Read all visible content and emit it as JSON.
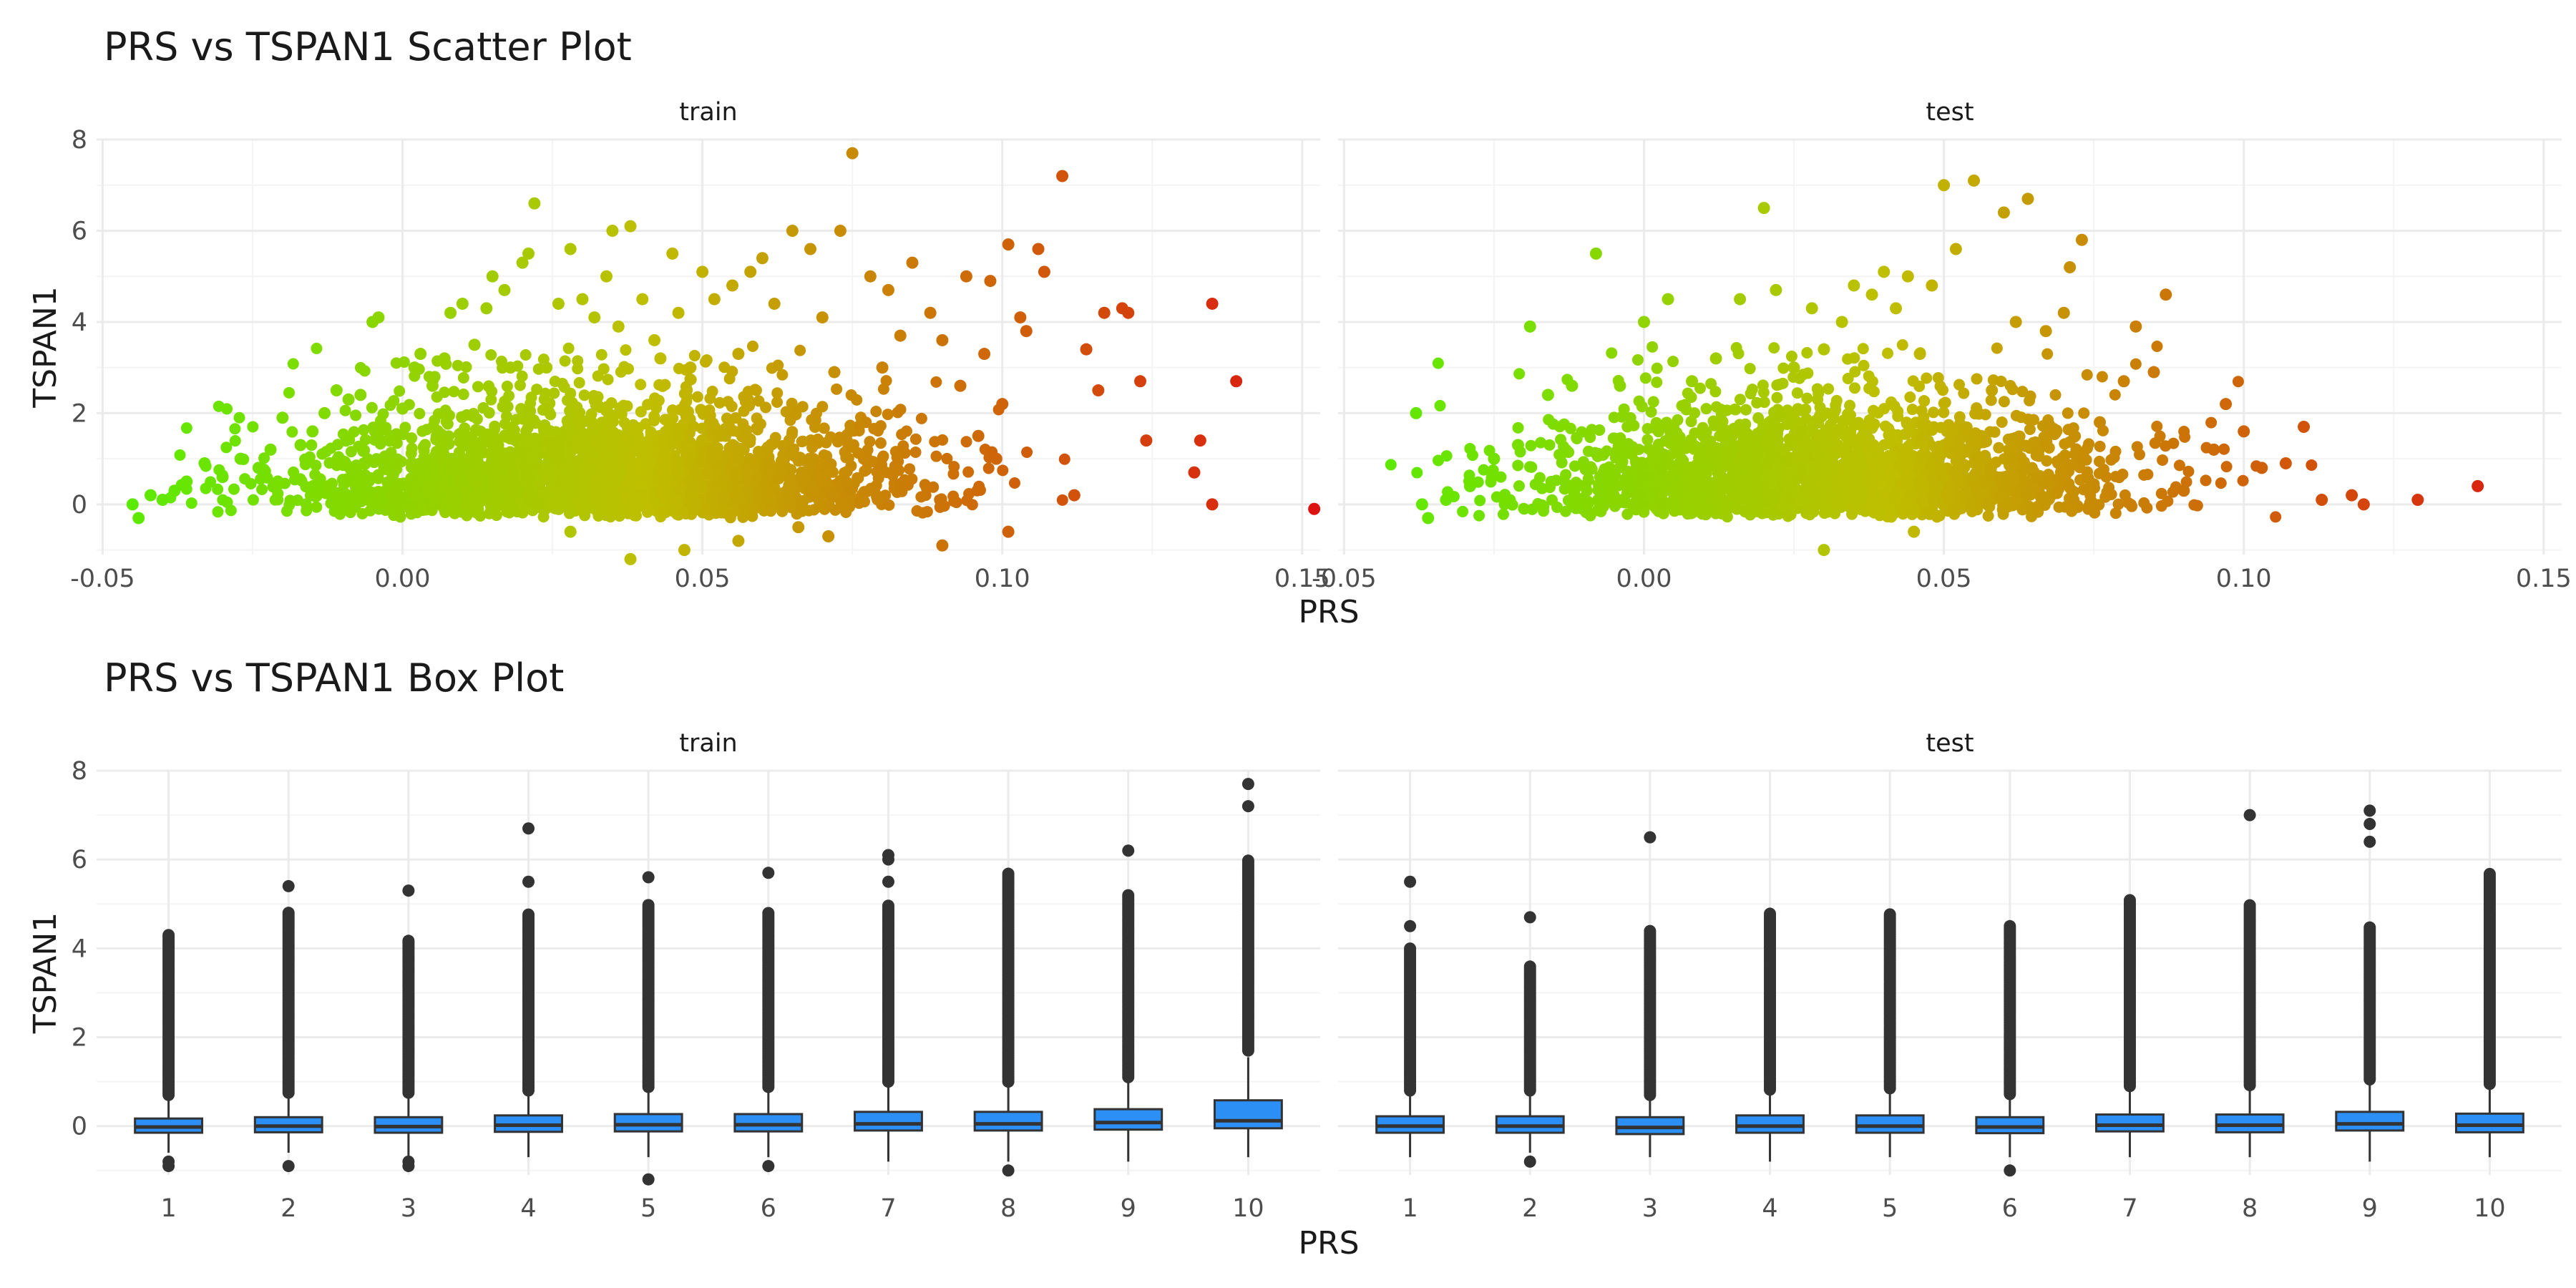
{
  "colors": {
    "low": "#55ee00",
    "mid": "#bfbf00",
    "high": "#dd1111",
    "box_fill": "#2b8ff5",
    "box_line": "#333333",
    "outlier": "#333333",
    "grid_major": "#ebebeb",
    "grid_minor": "#f4f4f4"
  },
  "scatter_section": {
    "title": "PRS vs TSPAN1 Scatter Plot",
    "xlabel": "PRS",
    "ylabel": "TSPAN1",
    "panels": [
      "train",
      "test"
    ],
    "x_ticks": [
      "-0.05",
      "0.00",
      "0.05",
      "0.10",
      "0.15"
    ],
    "y_ticks": [
      "0",
      "2",
      "4",
      "6",
      "8"
    ]
  },
  "box_section": {
    "title": "PRS vs TSPAN1 Box Plot",
    "xlabel": "PRS",
    "ylabel": "TSPAN1",
    "panels": [
      "train",
      "test"
    ],
    "x_ticks": [
      "1",
      "2",
      "3",
      "4",
      "5",
      "6",
      "7",
      "8",
      "9",
      "10"
    ],
    "y_ticks": [
      "0",
      "2",
      "4",
      "6",
      "8"
    ]
  },
  "chart_data": [
    {
      "type": "scatter",
      "title": "PRS vs TSPAN1 Scatter Plot",
      "xlabel": "PRS",
      "ylabel": "TSPAN1",
      "facets": [
        "train",
        "test"
      ],
      "xlim": [
        -0.051,
        0.153
      ],
      "ylim": [
        -1.1,
        8.0
      ],
      "x_ticks": [
        -0.05,
        0.0,
        0.05,
        0.1,
        0.15
      ],
      "y_ticks": [
        0,
        2,
        4,
        6,
        8
      ],
      "color_mapping": "PRS (green at low PRS, yellow-olive mid, red at high PRS)",
      "grid": true,
      "series": [
        {
          "name": "train",
          "x": [
            0.152,
            0.139,
            0.135,
            0.135,
            0.133,
            0.132,
            0.124,
            0.123,
            0.121,
            0.12,
            0.117,
            0.116,
            0.114,
            0.112,
            0.11,
            0.107,
            0.106,
            0.104,
            0.103,
            0.101,
            0.1,
            0.099,
            0.098,
            0.097,
            0.096,
            0.094,
            0.093,
            0.09,
            0.088,
            0.085,
            0.083,
            0.081,
            0.08,
            0.078,
            0.075,
            0.073,
            0.072,
            0.07,
            0.068,
            0.065,
            0.062,
            0.06,
            0.058,
            0.056,
            0.055,
            0.052,
            0.05,
            0.048,
            0.046,
            0.045,
            0.043,
            0.042,
            0.04,
            0.038,
            0.036,
            0.035,
            0.034,
            0.032,
            0.03,
            0.028,
            0.026,
            0.024,
            0.022,
            0.021,
            0.02,
            0.018,
            0.017,
            0.015,
            0.014,
            0.012,
            0.01,
            0.008,
            0.007,
            0.005,
            0.003,
            0.002,
            0.0,
            -0.002,
            -0.004,
            -0.005,
            -0.007,
            -0.009,
            -0.011,
            -0.013,
            -0.015,
            -0.017,
            -0.02,
            -0.022,
            -0.024,
            -0.027,
            -0.03,
            -0.033,
            -0.036,
            -0.038,
            -0.04,
            -0.042,
            -0.045,
            -0.044,
            0.047,
            0.056,
            0.028,
            0.038,
            0.066,
            0.071,
            0.09,
            0.101
          ],
          "y": [
            -0.1,
            2.7,
            4.4,
            0.0,
            1.4,
            0.7,
            1.4,
            2.7,
            4.2,
            4.3,
            4.2,
            2.5,
            3.4,
            0.2,
            7.2,
            5.1,
            5.6,
            3.8,
            4.1,
            5.7,
            2.2,
            1.0,
            4.9,
            3.3,
            1.5,
            5.0,
            2.6,
            3.6,
            4.2,
            5.3,
            3.7,
            4.7,
            3.0,
            5.0,
            7.7,
            6.0,
            2.9,
            4.1,
            5.6,
            6.0,
            4.4,
            5.4,
            5.1,
            3.3,
            4.8,
            4.5,
            5.1,
            3.0,
            4.2,
            5.5,
            3.2,
            3.6,
            4.5,
            6.1,
            3.9,
            6.0,
            5.0,
            4.1,
            4.5,
            5.6,
            4.4,
            3.0,
            6.6,
            5.5,
            5.3,
            3.0,
            4.7,
            5.0,
            4.3,
            3.5,
            4.4,
            4.2,
            3.2,
            2.6,
            3.3,
            3.0,
            2.1,
            1.5,
            4.1,
            4.0,
            2.4,
            2.3,
            2.5,
            2.0,
            1.6,
            1.3,
            1.9,
            1.2,
            0.8,
            1.0,
            0.6,
            0.9,
            0.5,
            0.3,
            0.1,
            0.2,
            0.0,
            -0.3,
            -1.0,
            -0.8,
            -0.6,
            -1.2,
            -0.5,
            -0.7,
            -0.9,
            -0.6
          ]
        },
        {
          "name": "test",
          "x": [
            0.139,
            0.129,
            0.12,
            0.118,
            0.113,
            0.11,
            0.107,
            0.103,
            0.1,
            0.097,
            0.095,
            0.09,
            0.087,
            0.085,
            0.082,
            0.08,
            0.076,
            0.073,
            0.071,
            0.07,
            0.067,
            0.064,
            0.062,
            0.06,
            0.058,
            0.055,
            0.052,
            0.05,
            0.048,
            0.046,
            0.044,
            0.042,
            0.04,
            0.038,
            0.035,
            0.033,
            0.03,
            0.028,
            0.025,
            0.022,
            0.02,
            0.016,
            0.012,
            0.008,
            0.004,
            0.0,
            -0.004,
            -0.008,
            -0.012,
            -0.016,
            -0.019,
            -0.021,
            -0.025,
            -0.029,
            -0.033,
            -0.037,
            -0.038,
            -0.036,
            0.03,
            0.045
          ],
          "y": [
            0.4,
            0.1,
            0.0,
            0.2,
            0.1,
            1.7,
            0.9,
            0.8,
            1.6,
            2.2,
            1.2,
            0.3,
            4.6,
            2.9,
            3.9,
            2.7,
            1.8,
            5.8,
            5.2,
            4.2,
            3.8,
            6.7,
            4.0,
            6.4,
            2.5,
            7.1,
            5.6,
            7.0,
            4.8,
            3.3,
            5.0,
            4.3,
            5.1,
            4.6,
            4.8,
            4.0,
            3.4,
            4.3,
            3.0,
            4.7,
            6.5,
            4.5,
            3.2,
            2.7,
            4.5,
            4.0,
            2.6,
            5.5,
            2.6,
            2.4,
            3.9,
            1.3,
            1.0,
            0.4,
            0.1,
            0.0,
            2.0,
            -0.3,
            -1.0,
            -0.6
          ]
        }
      ]
    },
    {
      "type": "box",
      "title": "PRS vs TSPAN1 Box Plot",
      "xlabel": "PRS",
      "ylabel": "TSPAN1",
      "facets": [
        "train",
        "test"
      ],
      "categories": [
        "1",
        "2",
        "3",
        "4",
        "5",
        "6",
        "7",
        "8",
        "9",
        "10"
      ],
      "ylim": [
        -1.1,
        8.0
      ],
      "y_ticks": [
        0,
        2,
        4,
        6,
        8
      ],
      "grid": true,
      "series": [
        {
          "name": "train",
          "boxes": [
            {
              "q1": -0.15,
              "median": -0.02,
              "q3": 0.17,
              "whisker_low": -0.6,
              "whisker_high": 0.62,
              "outlier_hi_start": 0.7,
              "outlier_max": 4.3,
              "outliers_low": [
                -0.8,
                -0.9
              ]
            },
            {
              "q1": -0.14,
              "median": 0.0,
              "q3": 0.2,
              "whisker_low": -0.6,
              "whisker_high": 0.65,
              "outlier_hi_start": 0.75,
              "outlier_max": 4.8,
              "outliers_low": [
                -0.9
              ],
              "extra_outliers": [
                5.4
              ]
            },
            {
              "q1": -0.15,
              "median": -0.01,
              "q3": 0.2,
              "whisker_low": -0.7,
              "whisker_high": 0.65,
              "outlier_hi_start": 0.75,
              "outlier_max": 4.2,
              "outliers_low": [
                -0.8,
                -0.9
              ],
              "extra_outliers": [
                5.3
              ]
            },
            {
              "q1": -0.13,
              "median": 0.02,
              "q3": 0.24,
              "whisker_low": -0.7,
              "whisker_high": 0.72,
              "outlier_hi_start": 0.8,
              "outlier_max": 4.8,
              "outliers_low": [],
              "extra_outliers": [
                5.5,
                6.7
              ]
            },
            {
              "q1": -0.12,
              "median": 0.03,
              "q3": 0.27,
              "whisker_low": -0.7,
              "whisker_high": 0.8,
              "outlier_hi_start": 0.88,
              "outlier_max": 5.0,
              "outliers_low": [
                -1.2
              ],
              "extra_outliers": [
                5.6
              ]
            },
            {
              "q1": -0.12,
              "median": 0.03,
              "q3": 0.27,
              "whisker_low": -0.7,
              "whisker_high": 0.8,
              "outlier_hi_start": 0.88,
              "outlier_max": 4.8,
              "outliers_low": [
                -0.9
              ],
              "extra_outliers": [
                5.7
              ]
            },
            {
              "q1": -0.1,
              "median": 0.05,
              "q3": 0.32,
              "whisker_low": -0.8,
              "whisker_high": 0.9,
              "outlier_hi_start": 1.0,
              "outlier_max": 5.0,
              "outliers_low": [],
              "extra_outliers": [
                5.5,
                6.0,
                6.1
              ]
            },
            {
              "q1": -0.1,
              "median": 0.05,
              "q3": 0.32,
              "whisker_low": -0.8,
              "whisker_high": 0.9,
              "outlier_hi_start": 1.0,
              "outlier_max": 5.7,
              "outliers_low": [
                -1.0
              ]
            },
            {
              "q1": -0.08,
              "median": 0.08,
              "q3": 0.38,
              "whisker_low": -0.8,
              "whisker_high": 1.0,
              "outlier_hi_start": 1.1,
              "outlier_max": 5.2,
              "outliers_low": [],
              "extra_outliers": [
                6.2
              ]
            },
            {
              "q1": -0.05,
              "median": 0.12,
              "q3": 0.58,
              "whisker_low": -0.7,
              "whisker_high": 1.55,
              "outlier_hi_start": 1.7,
              "outlier_max": 6.0,
              "outliers_low": [],
              "extra_outliers": [
                7.2,
                7.7
              ]
            }
          ]
        },
        {
          "name": "test",
          "boxes": [
            {
              "q1": -0.15,
              "median": 0.0,
              "q3": 0.22,
              "whisker_low": -0.7,
              "whisker_high": 0.72,
              "outlier_hi_start": 0.8,
              "outlier_max": 4.0,
              "outliers_low": [],
              "extra_outliers": [
                4.5,
                5.5
              ]
            },
            {
              "q1": -0.15,
              "median": 0.0,
              "q3": 0.22,
              "whisker_low": -0.6,
              "whisker_high": 0.72,
              "outlier_hi_start": 0.8,
              "outlier_max": 3.6,
              "outliers_low": [
                -0.8
              ],
              "extra_outliers": [
                4.7
              ]
            },
            {
              "q1": -0.18,
              "median": -0.03,
              "q3": 0.2,
              "whisker_low": -0.7,
              "whisker_high": 0.62,
              "outlier_hi_start": 0.7,
              "outlier_max": 4.4,
              "outliers_low": [],
              "extra_outliers": [
                6.5
              ]
            },
            {
              "q1": -0.15,
              "median": 0.0,
              "q3": 0.24,
              "whisker_low": -0.8,
              "whisker_high": 0.72,
              "outlier_hi_start": 0.82,
              "outlier_max": 4.8,
              "outliers_low": []
            },
            {
              "q1": -0.15,
              "median": 0.0,
              "q3": 0.24,
              "whisker_low": -0.7,
              "whisker_high": 0.75,
              "outlier_hi_start": 0.85,
              "outlier_max": 4.8,
              "outliers_low": []
            },
            {
              "q1": -0.16,
              "median": -0.02,
              "q3": 0.2,
              "whisker_low": -0.7,
              "whisker_high": 0.62,
              "outlier_hi_start": 0.72,
              "outlier_max": 4.5,
              "outliers_low": [
                -1.0
              ]
            },
            {
              "q1": -0.12,
              "median": 0.02,
              "q3": 0.26,
              "whisker_low": -0.7,
              "whisker_high": 0.8,
              "outlier_hi_start": 0.9,
              "outlier_max": 5.1,
              "outliers_low": []
            },
            {
              "q1": -0.14,
              "median": 0.02,
              "q3": 0.26,
              "whisker_low": -0.7,
              "whisker_high": 0.82,
              "outlier_hi_start": 0.92,
              "outlier_max": 5.0,
              "outliers_low": [],
              "extra_outliers": [
                7.0
              ]
            },
            {
              "q1": -0.1,
              "median": 0.05,
              "q3": 0.32,
              "whisker_low": -0.8,
              "whisker_high": 0.95,
              "outlier_hi_start": 1.05,
              "outlier_max": 4.5,
              "outliers_low": [],
              "extra_outliers": [
                6.4,
                6.8,
                7.1
              ]
            },
            {
              "q1": -0.14,
              "median": 0.02,
              "q3": 0.28,
              "whisker_low": -0.7,
              "whisker_high": 0.85,
              "outlier_hi_start": 0.95,
              "outlier_max": 5.7,
              "outliers_low": []
            }
          ]
        }
      ]
    }
  ]
}
